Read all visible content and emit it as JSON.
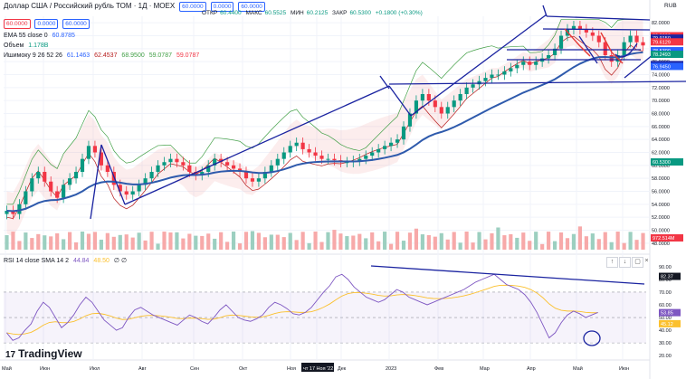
{
  "header": {
    "symbol": "Доллар США / Российский рубль ТОМ · 1Д · MOEX",
    "price_box_1": "60.0000",
    "price_box_2": "0.0000",
    "price_box_3": "60.0000",
    "ohlc": {
      "o_label": "ОТКР",
      "o": "60.4400",
      "h_label": "МАКС",
      "h": "60.5525",
      "l_label": "МИН",
      "l": "60.2125",
      "c_label": "ЗАКР",
      "c": "60.5300",
      "change": "+0.1800 (+0.30%)"
    },
    "currency": "RUB"
  },
  "legends": {
    "ema": {
      "label": "EMA 55 close 0",
      "value": "60.8785"
    },
    "volume": {
      "label": "Объем",
      "value": "1.178B"
    },
    "ichimoku": {
      "label": "Ишимоку 9 26 52 26",
      "values": [
        "61.1463",
        "62.4537",
        "68.9500",
        "59.0787",
        "59.0787"
      ]
    },
    "rsi": {
      "label": "RSI 14 close SMA 14 2",
      "values": [
        "44.84",
        "48.50"
      ],
      "symbols": "∅ ∅"
    }
  },
  "watermark": "TradingView",
  "logo_glyph": "17",
  "pane_buttons": [
    "↑",
    "↓",
    "▢",
    "×"
  ],
  "chart_data": [
    {
      "type": "candlestick",
      "title": "Доллар США / Российский рубль ТОМ · 1Д · MOEX",
      "x_ticks": [
        "Май",
        "Июн",
        "Июл",
        "Авг",
        "Сен",
        "Окт",
        "Ноя",
        "чт 17 Ноя '22",
        "Дек",
        "2023",
        "Фев",
        "Мар",
        "Апр",
        "Май",
        "Июн"
      ],
      "y_ticks": [
        "82.0000",
        "80.0000",
        "78.0000",
        "76.0000",
        "74.0000",
        "72.0000",
        "70.0000",
        "68.0000",
        "66.0000",
        "64.0000",
        "62.0000",
        "60.0000",
        "58.0000",
        "56.0000",
        "54.0000",
        "52.0000",
        "50.0000",
        "48.0000"
      ],
      "ylim": [
        47,
        83
      ],
      "price_labels": [
        "80.0000",
        "79.9150",
        "79.6129",
        "78.5300",
        "78.2493",
        "76.9475",
        "76.9450"
      ],
      "last_price_label": "60.5300",
      "volume_label": "972.514M",
      "close_series": [
        53,
        52.5,
        54,
        56,
        58,
        59,
        57.5,
        56,
        55,
        57,
        58,
        59,
        61,
        63,
        62,
        60,
        59,
        57,
        56,
        55.5,
        56,
        57,
        58,
        59,
        60,
        60.5,
        61,
        60.5,
        60,
        59,
        58.5,
        59,
        60,
        61,
        60.5,
        60,
        59.5,
        59,
        58,
        57.5,
        58,
        59,
        60,
        61,
        62,
        63,
        63.5,
        62.5,
        62,
        61.5,
        61,
        61,
        60.8,
        60.5,
        60.5,
        60.7,
        61,
        61.5,
        62,
        62.5,
        63,
        63.5,
        64,
        66,
        68,
        70,
        71,
        70,
        69,
        68,
        69,
        70,
        71,
        72,
        72.5,
        73,
        73.5,
        74,
        74,
        74.5,
        75,
        75.5,
        76,
        75.5,
        76,
        76.5,
        77,
        78,
        80,
        81,
        81.5,
        81,
        80.5,
        80,
        79,
        77,
        76,
        77,
        79,
        80,
        79,
        78.5
      ]
    },
    {
      "type": "line",
      "title": "RSI 14 close SMA 14 2",
      "y_ticks": [
        "90.00",
        "80.00",
        "70.00",
        "60.00",
        "50.00",
        "40.00",
        "30.00",
        "20.00"
      ],
      "ylim": [
        18,
        92
      ],
      "rsi_labels": [
        "82.37",
        "53.85",
        "45.12"
      ],
      "rsi_series": [
        38,
        32,
        34,
        40,
        45,
        55,
        62,
        58,
        50,
        42,
        46,
        52,
        60,
        66,
        62,
        55,
        48,
        44,
        40,
        42,
        50,
        56,
        58,
        55,
        52,
        50,
        48,
        46,
        44,
        48,
        52,
        50,
        47,
        45,
        50,
        56,
        60,
        55,
        50,
        48,
        47,
        49,
        52,
        58,
        62,
        60,
        57,
        53,
        52,
        54,
        58,
        64,
        70,
        75,
        82,
        84,
        80,
        74,
        70,
        66,
        64,
        62,
        64,
        68,
        72,
        70,
        66,
        64,
        62,
        60,
        62,
        64,
        66,
        68,
        70,
        72,
        75,
        78,
        80,
        82,
        84,
        80,
        76,
        74,
        72,
        68,
        62,
        54,
        44,
        34,
        38,
        46,
        52,
        55,
        53,
        50,
        52,
        54
      ]
    }
  ]
}
